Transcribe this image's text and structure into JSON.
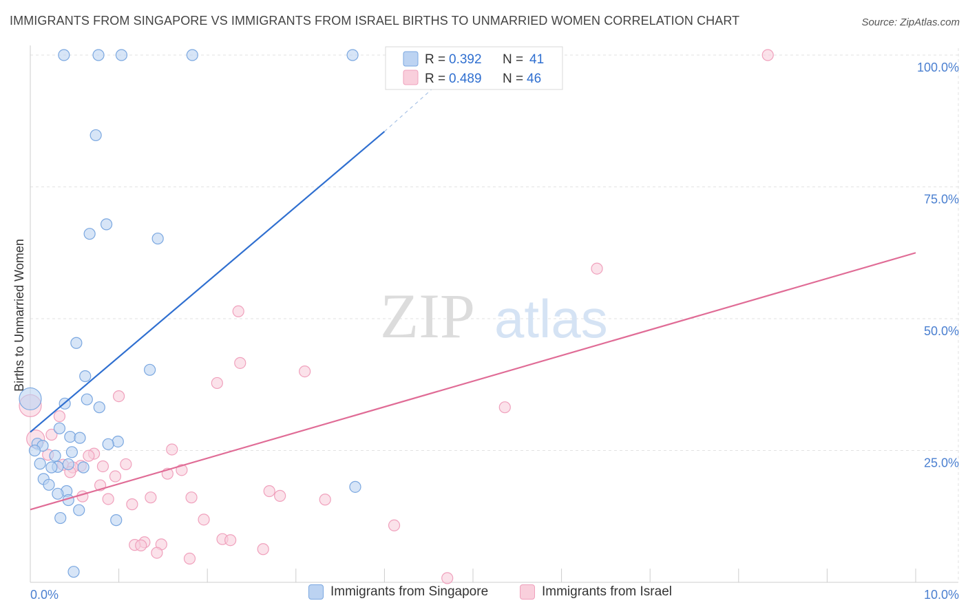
{
  "chart_data": {
    "type": "scatter",
    "title": "IMMIGRANTS FROM SINGAPORE VS IMMIGRANTS FROM ISRAEL BIRTHS TO UNMARRIED WOMEN CORRELATION CHART",
    "source": "Source: ZipAtlas.com",
    "watermark": {
      "part1": "ZIP",
      "part2": "atlas"
    },
    "xlabel": "",
    "ylabel": "Births to Unmarried Women",
    "xlim": [
      0,
      10
    ],
    "ylim": [
      0,
      100
    ],
    "x_tick_labels": [
      {
        "value": 0,
        "label": "0.0%"
      },
      {
        "value": 10,
        "label": "10.0%"
      }
    ],
    "y_tick_labels": [
      {
        "value": 25,
        "label": "25.0%"
      },
      {
        "value": 50,
        "label": "50.0%"
      },
      {
        "value": 75,
        "label": "75.0%"
      },
      {
        "value": 100,
        "label": "100.0%"
      }
    ],
    "grid": true,
    "legend_position": "top-center",
    "series": [
      {
        "name": "Immigrants from Singapore",
        "color": "#7aa7e0",
        "fill": "#bcd3f2",
        "line_color": "#2f6fd0",
        "R": "0.392",
        "N": "41",
        "trend": {
          "x0": 0.0,
          "y0": 28.5,
          "x1": 4.0,
          "y1": 85.5,
          "x_dash_end": 4.6,
          "y_dash_end": 94.5
        },
        "points": [
          {
            "x": 0.38,
            "y": 100
          },
          {
            "x": 0.77,
            "y": 100
          },
          {
            "x": 1.03,
            "y": 100
          },
          {
            "x": 1.83,
            "y": 100
          },
          {
            "x": 3.64,
            "y": 100
          },
          {
            "x": 0.74,
            "y": 84.8
          },
          {
            "x": 0.86,
            "y": 67.9
          },
          {
            "x": 0.67,
            "y": 66.1
          },
          {
            "x": 1.44,
            "y": 65.2
          },
          {
            "x": 0.52,
            "y": 45.4
          },
          {
            "x": 1.35,
            "y": 40.3
          },
          {
            "x": 0.62,
            "y": 39.1
          },
          {
            "x": 0.64,
            "y": 34.7
          },
          {
            "x": 0.39,
            "y": 33.9
          },
          {
            "x": 0.78,
            "y": 33.2
          },
          {
            "x": 0.0,
            "y": 34.8,
            "size": 16
          },
          {
            "x": 0.33,
            "y": 29.2
          },
          {
            "x": 0.45,
            "y": 27.6
          },
          {
            "x": 0.56,
            "y": 27.4
          },
          {
            "x": 0.99,
            "y": 26.7
          },
          {
            "x": 0.88,
            "y": 26.2
          },
          {
            "x": 0.08,
            "y": 26.3
          },
          {
            "x": 0.14,
            "y": 25.9
          },
          {
            "x": 0.05,
            "y": 25.0
          },
          {
            "x": 0.47,
            "y": 24.7
          },
          {
            "x": 0.28,
            "y": 24.0
          },
          {
            "x": 0.11,
            "y": 22.5
          },
          {
            "x": 0.43,
            "y": 22.4
          },
          {
            "x": 0.31,
            "y": 21.9
          },
          {
            "x": 0.6,
            "y": 21.8
          },
          {
            "x": 0.24,
            "y": 21.8
          },
          {
            "x": 0.15,
            "y": 19.6
          },
          {
            "x": 0.21,
            "y": 18.5
          },
          {
            "x": 3.67,
            "y": 18.1
          },
          {
            "x": 0.41,
            "y": 17.3
          },
          {
            "x": 0.31,
            "y": 16.8
          },
          {
            "x": 0.43,
            "y": 15.6
          },
          {
            "x": 0.55,
            "y": 13.7
          },
          {
            "x": 0.34,
            "y": 12.2
          },
          {
            "x": 0.97,
            "y": 11.8
          },
          {
            "x": 0.49,
            "y": 2.0
          }
        ]
      },
      {
        "name": "Immigrants from Israel",
        "color": "#f0a0bc",
        "fill": "#f9cfdc",
        "line_color": "#e06c96",
        "R": "0.489",
        "N": "46",
        "trend": {
          "x0": 0.0,
          "y0": 13.8,
          "x1": 10.0,
          "y1": 62.5
        },
        "points": [
          {
            "x": 8.33,
            "y": 100
          },
          {
            "x": 6.4,
            "y": 59.5
          },
          {
            "x": 2.35,
            "y": 51.4
          },
          {
            "x": 2.37,
            "y": 41.6
          },
          {
            "x": 3.1,
            "y": 40.0
          },
          {
            "x": 2.11,
            "y": 37.8
          },
          {
            "x": 1.0,
            "y": 35.3
          },
          {
            "x": 5.36,
            "y": 33.2
          },
          {
            "x": 0.0,
            "y": 33.5,
            "size": 16
          },
          {
            "x": 0.33,
            "y": 31.5
          },
          {
            "x": 0.06,
            "y": 27.2,
            "size": 13
          },
          {
            "x": 0.24,
            "y": 28.0
          },
          {
            "x": 1.6,
            "y": 25.2
          },
          {
            "x": 0.72,
            "y": 24.4
          },
          {
            "x": 0.66,
            "y": 24.0
          },
          {
            "x": 0.2,
            "y": 24.2
          },
          {
            "x": 1.08,
            "y": 22.4
          },
          {
            "x": 0.37,
            "y": 22.3
          },
          {
            "x": 0.57,
            "y": 22.1
          },
          {
            "x": 0.48,
            "y": 21.8
          },
          {
            "x": 0.82,
            "y": 22.0
          },
          {
            "x": 0.45,
            "y": 20.9
          },
          {
            "x": 1.71,
            "y": 21.3
          },
          {
            "x": 1.55,
            "y": 20.6
          },
          {
            "x": 0.96,
            "y": 20.1
          },
          {
            "x": 0.79,
            "y": 18.4
          },
          {
            "x": 2.7,
            "y": 17.3
          },
          {
            "x": 2.82,
            "y": 16.4
          },
          {
            "x": 0.59,
            "y": 16.3
          },
          {
            "x": 1.36,
            "y": 16.1
          },
          {
            "x": 1.82,
            "y": 16.1
          },
          {
            "x": 0.88,
            "y": 15.8
          },
          {
            "x": 3.33,
            "y": 15.7
          },
          {
            "x": 1.15,
            "y": 14.8
          },
          {
            "x": 1.96,
            "y": 11.9
          },
          {
            "x": 4.11,
            "y": 10.8
          },
          {
            "x": 2.17,
            "y": 8.2
          },
          {
            "x": 2.26,
            "y": 8.0
          },
          {
            "x": 1.29,
            "y": 7.6
          },
          {
            "x": 1.48,
            "y": 7.2
          },
          {
            "x": 1.18,
            "y": 7.1
          },
          {
            "x": 1.25,
            "y": 7.0
          },
          {
            "x": 2.63,
            "y": 6.3
          },
          {
            "x": 1.43,
            "y": 5.6
          },
          {
            "x": 1.8,
            "y": 4.5
          },
          {
            "x": 4.71,
            "y": 0.8
          }
        ]
      }
    ]
  }
}
